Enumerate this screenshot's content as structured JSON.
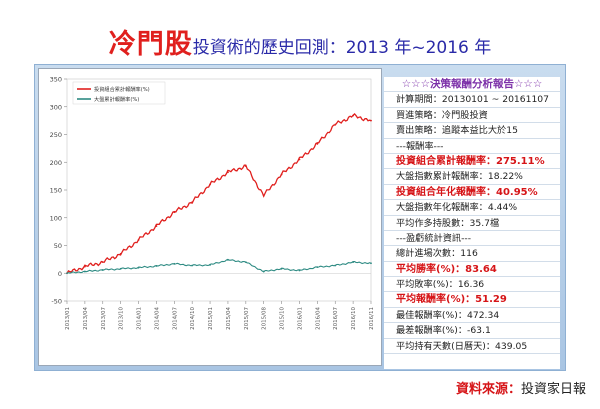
{
  "header": {
    "title_main": "冷門股",
    "title_sub": "投資術的歷史回測：2013 年~2016 年"
  },
  "info_panel": {
    "heading": "☆☆☆決策報酬分析報告☆☆☆",
    "rows": [
      {
        "text": "計算期間：20130101 ~ 20161107",
        "style": "plain"
      },
      {
        "text": "買進策略：冷門股投資",
        "style": "plain"
      },
      {
        "text": "賣出策略：追蹤本益比大於15",
        "style": "plain"
      },
      {
        "text": "---報酬率---",
        "style": "plain"
      },
      {
        "text": "投資組合累計報酬率：275.11%",
        "style": "hl"
      },
      {
        "text": "大盤指數累計報酬率：18.22%",
        "style": "plain"
      },
      {
        "text": "投資組合年化報酬率：40.95%",
        "style": "hl"
      },
      {
        "text": "大盤指數年化報酬率：4.44%",
        "style": "plain"
      },
      {
        "text": "平均作多持股數：35.7檔",
        "style": "plain"
      },
      {
        "text": "---盈虧統計資訊---",
        "style": "plain"
      },
      {
        "text": "總計進場次數：116",
        "style": "plain"
      },
      {
        "text": "平均勝率(%)：83.64",
        "style": "hl"
      },
      {
        "text": "平均敗率(%)：16.36",
        "style": "plain"
      },
      {
        "text": "平均報酬率(%)：51.29",
        "style": "hl"
      },
      {
        "text": "最佳報酬率(%)：472.34",
        "style": "plain"
      },
      {
        "text": "最差報酬率(%)：-63.1",
        "style": "plain"
      },
      {
        "text": "平均持有天數(日曆天)：439.05",
        "style": "plain"
      }
    ]
  },
  "source": {
    "label": "資料來源：",
    "name": "投資家日報"
  },
  "colors": {
    "portfolio": "#e0201e",
    "index": "#2e8b83",
    "title_red": "#e0201e",
    "title_blue": "#2a2aa8"
  },
  "chart_data": {
    "type": "line",
    "title": "",
    "xlabel": "",
    "ylabel": "",
    "ylim": [
      -50,
      350
    ],
    "yticks": [
      -50,
      0,
      50,
      100,
      150,
      200,
      250,
      300,
      350
    ],
    "grid": false,
    "legend_position": "top-left",
    "x": [
      "2013/01",
      "2013/04",
      "2013/07",
      "2013/10",
      "2014/01",
      "2014/04",
      "2014/07",
      "2014/10",
      "2015/01",
      "2015/04",
      "2015/07",
      "2015/08",
      "2015/10",
      "2016/01",
      "2016/04",
      "2016/07",
      "2016/10",
      "2016/11"
    ],
    "series": [
      {
        "name": "投資組合累計報酬率(%)",
        "values": [
          0,
          12,
          20,
          35,
          60,
          85,
          110,
          128,
          160,
          182,
          193,
          140,
          178,
          205,
          233,
          268,
          284,
          275
        ]
      },
      {
        "name": "大盤累計報酬率(%)",
        "values": [
          0,
          3,
          6,
          8,
          10,
          13,
          17,
          14,
          15,
          24,
          20,
          3,
          8,
          5,
          11,
          14,
          20,
          18
        ]
      }
    ]
  }
}
